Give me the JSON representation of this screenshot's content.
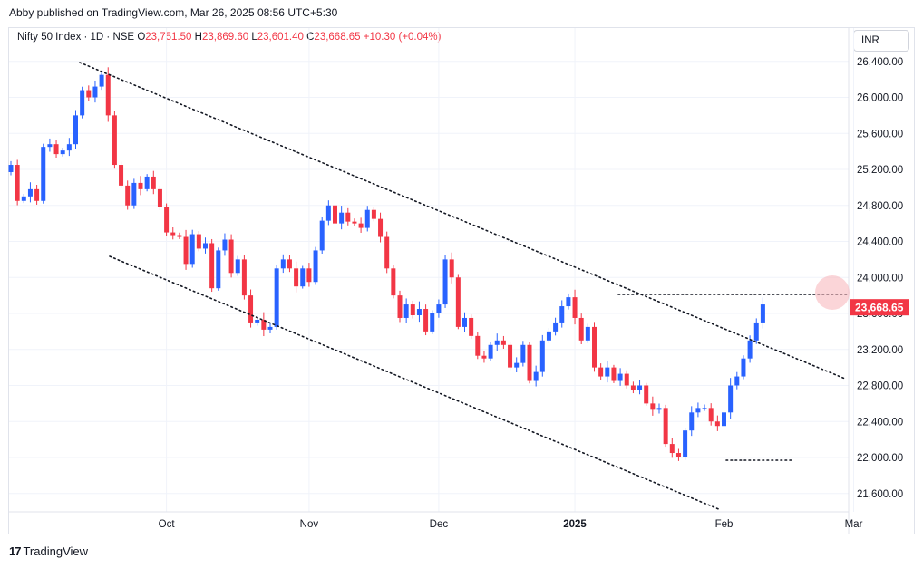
{
  "header": {
    "published": "Abby published on TradingView.com, Mar 26, 2025 08:56 UTC+5:30"
  },
  "legend": {
    "symbol": "Nifty 50 Index · 1D · NSE",
    "o_label": "O",
    "o": "23,751.50",
    "h_label": "H",
    "h": "23,869.60",
    "l_label": "L",
    "l": "23,601.40",
    "c_label": "C",
    "c": "23,668.65",
    "change": "+10.30 (+0.04%)"
  },
  "currency": "INR",
  "footer": {
    "brand": "TradingView",
    "logo_glyph": "17"
  },
  "colors": {
    "up": "#2962ff",
    "down": "#f23645",
    "grid": "#f0f3fa",
    "text": "#131722",
    "highlight": "#f7b2b8"
  },
  "chart_data": {
    "type": "candlestick",
    "ylim": [
      21350,
      26600
    ],
    "y_ticks": [
      "26,400.00",
      "26,000.00",
      "25,600.00",
      "25,200.00",
      "24,800.00",
      "24,400.00",
      "24,000.00",
      "23,600.00",
      "23,200.00",
      "22,800.00",
      "22,400.00",
      "22,000.00",
      "21,600.00"
    ],
    "y_tick_values": [
      26400,
      26000,
      25600,
      25200,
      24800,
      24400,
      24000,
      23600,
      23200,
      22800,
      22400,
      22000,
      21600
    ],
    "x_labels": [
      {
        "label": "Oct",
        "index": 24
      },
      {
        "label": "Nov",
        "index": 46
      },
      {
        "label": "Dec",
        "index": 66
      },
      {
        "label": "2025",
        "index": 87
      },
      {
        "label": "Feb",
        "index": 110
      },
      {
        "label": "Mar",
        "index": 130
      }
    ],
    "last_price": "23,668.65",
    "last_price_value": 23668.65,
    "closes": [
      25250,
      24850,
      24900,
      24980,
      24850,
      25450,
      25480,
      25370,
      25410,
      25480,
      25800,
      26080,
      26000,
      26120,
      26250,
      25800,
      25250,
      25020,
      24800,
      25050,
      24980,
      25120,
      24980,
      24780,
      24500,
      24470,
      24450,
      24150,
      24480,
      24320,
      24380,
      23880,
      24300,
      24420,
      24050,
      24200,
      23800,
      23500,
      23530,
      23420,
      23450,
      24100,
      24200,
      24100,
      23900,
      24100,
      23950,
      24300,
      24630,
      24800,
      24600,
      24720,
      24620,
      24600,
      24550,
      24750,
      24650,
      24450,
      24100,
      23800,
      23550,
      23700,
      23580,
      23650,
      23400,
      23600,
      23700,
      24200,
      24000,
      23450,
      23550,
      23350,
      23130,
      23100,
      23250,
      23300,
      23250,
      23000,
      23050,
      23250,
      22850,
      22950,
      23300,
      23400,
      23500,
      23680,
      23780,
      23550,
      23300,
      23450,
      23000,
      22900,
      23000,
      22850,
      22930,
      22800,
      22750,
      22800,
      22600,
      22530,
      22550,
      22150,
      22050,
      22000,
      22300,
      22500,
      22550,
      22550,
      22400,
      22350,
      22500,
      22800,
      22900,
      23100,
      23300,
      23500,
      23700
    ],
    "series": []
  }
}
